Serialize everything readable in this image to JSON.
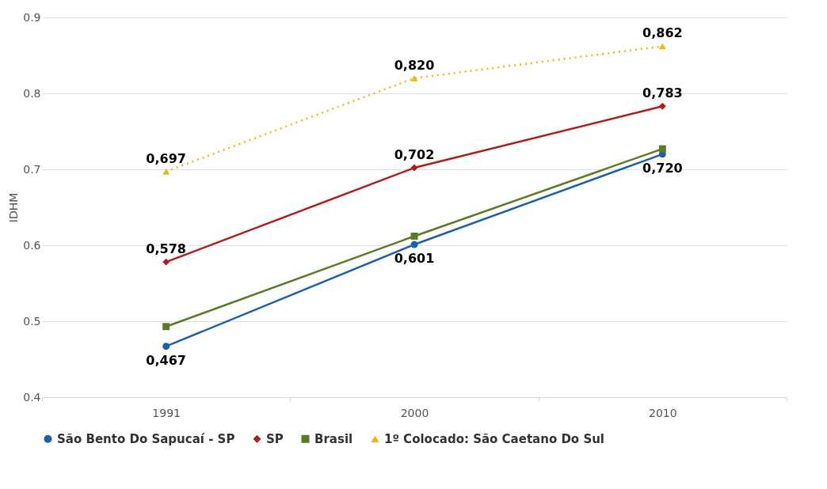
{
  "chart_data": {
    "type": "line",
    "ylabel": "IDHM",
    "categories": [
      "1991",
      "2000",
      "2010"
    ],
    "ylim": [
      0.4,
      0.9
    ],
    "yticks": [
      0.4,
      0.5,
      0.6,
      0.7,
      0.8,
      0.9
    ],
    "grid": "y",
    "legend": "bottom",
    "series": [
      {
        "name": "São Bento Do Sapucaí - SP",
        "color": "#1c5fae",
        "marker": "circle",
        "line_style": "solid",
        "values": [
          0.467,
          0.601,
          0.72
        ],
        "value_labels": [
          "0,467",
          "0,601",
          "0,720"
        ]
      },
      {
        "name": "SP",
        "color": "#b01c1c",
        "marker": "diamond",
        "line_style": "solid",
        "values": [
          0.578,
          0.702,
          0.783
        ],
        "value_labels": [
          "0,578",
          "0,702",
          "0,783"
        ]
      },
      {
        "name": "Brasil",
        "color": "#5a7a23",
        "marker": "square",
        "line_style": "solid",
        "values": [
          0.493,
          0.612,
          0.727
        ]
      },
      {
        "name": "1º Colocado: São Caetano Do Sul",
        "color": "#f5b50a",
        "marker": "triangle",
        "line_style": "dotted",
        "values": [
          0.697,
          0.82,
          0.862
        ],
        "value_labels": [
          "0,697",
          "0,820",
          "0,862"
        ]
      }
    ]
  }
}
